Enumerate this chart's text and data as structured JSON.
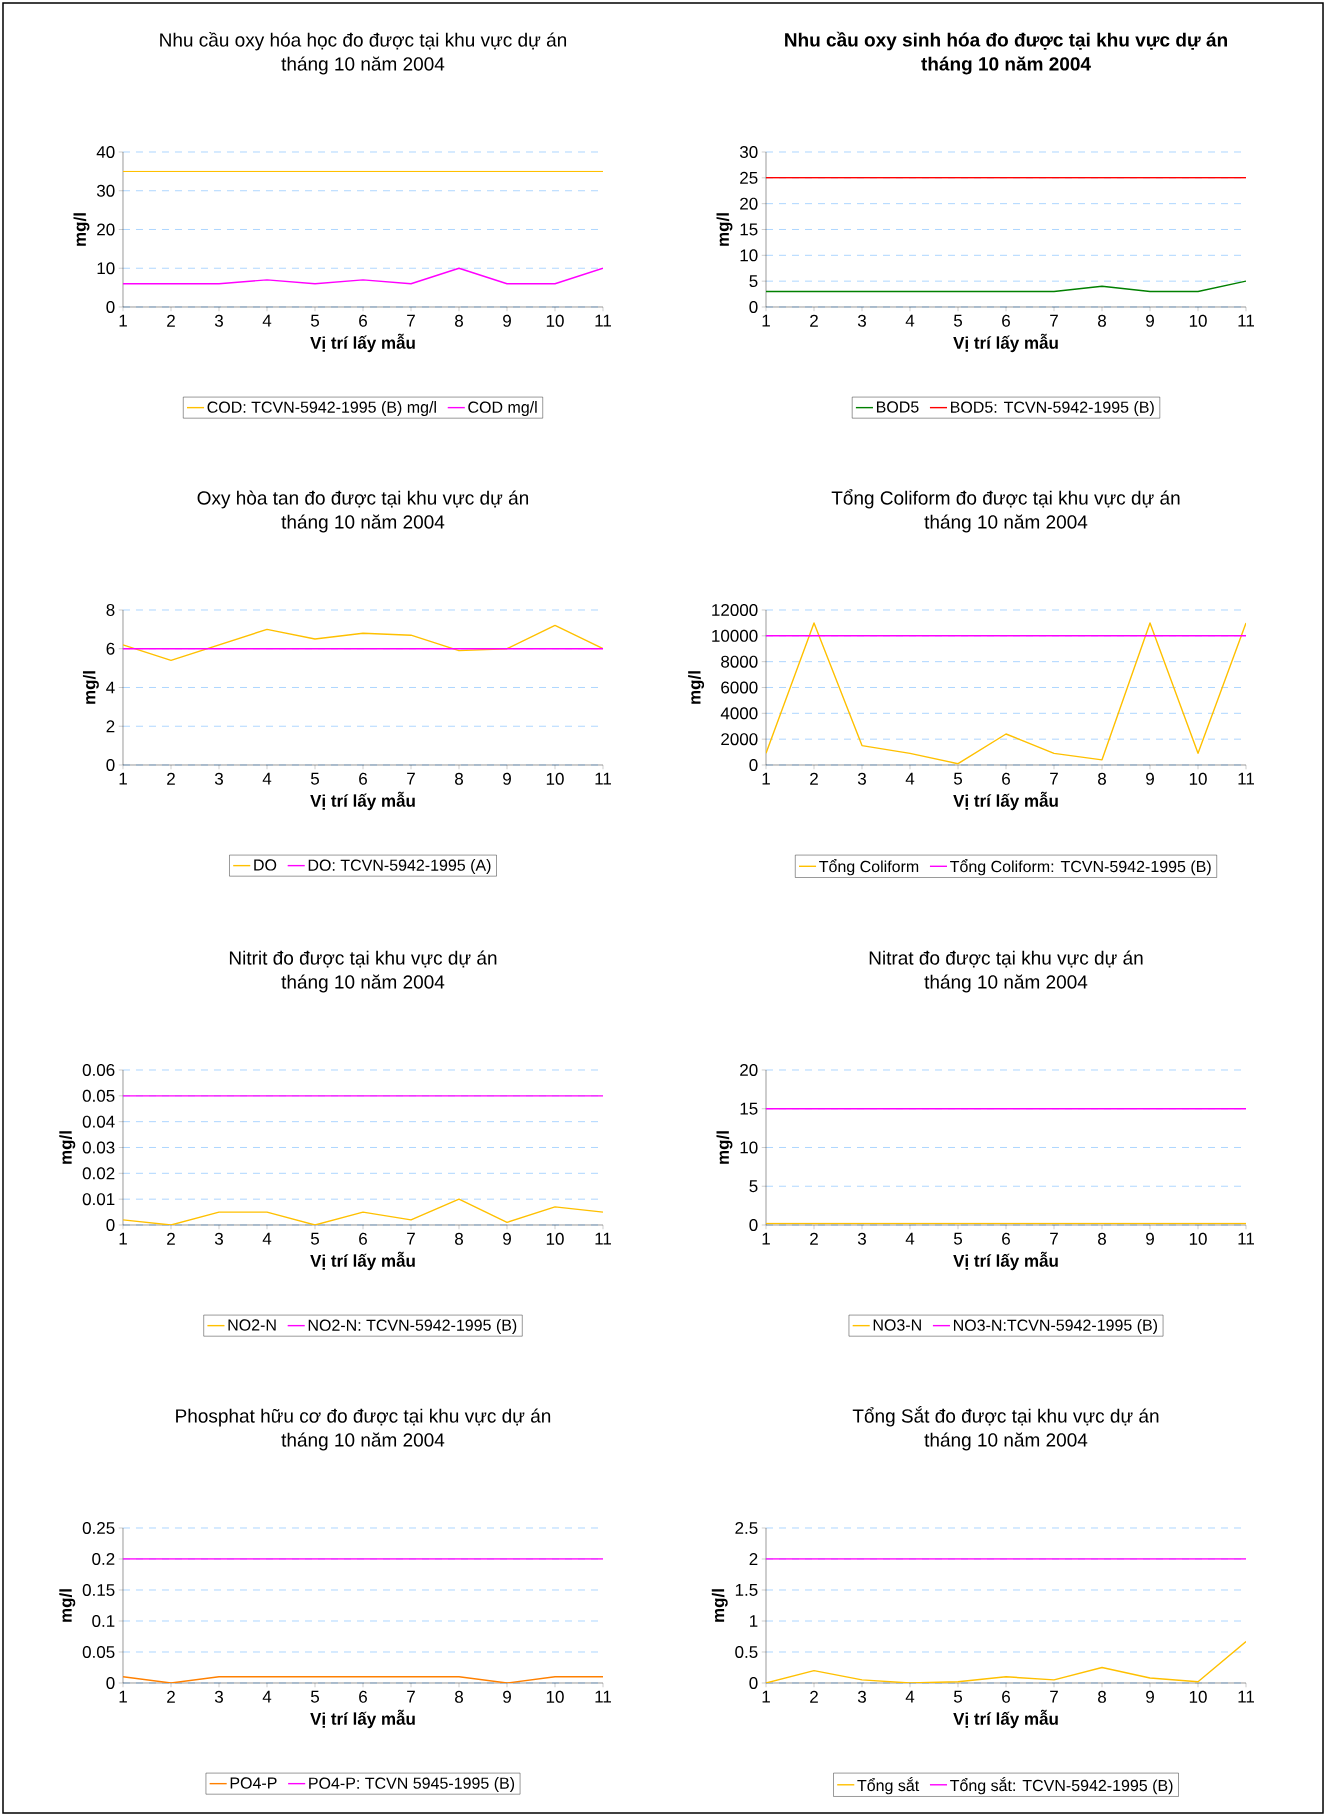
{
  "chart_data": [
    {
      "type": "line",
      "title": "Nhu cầu oxy hóa học đo được tại khu vực dự án",
      "subtitle": "tháng 10 năm 2004",
      "xlabel": "Vị trí lấy mẫu",
      "ylabel": "mg/l",
      "categories": [
        "1",
        "2",
        "3",
        "4",
        "5",
        "6",
        "7",
        "8",
        "9",
        "10",
        "11"
      ],
      "ylim": [
        0,
        40
      ],
      "yticks": [
        0,
        10,
        20,
        30,
        40
      ],
      "grid": "y",
      "legend": "bottom",
      "series": [
        {
          "name": "COD: TCVN-5942-1995 (B) mg/l",
          "color": "#ffc000",
          "values": [
            35,
            35,
            35,
            35,
            35,
            35,
            35,
            35,
            35,
            35,
            35
          ]
        },
        {
          "name": "COD  mg/l",
          "color": "#ff00ff",
          "values": [
            6,
            6,
            6,
            7,
            6,
            7,
            6,
            10,
            6,
            6,
            10
          ]
        }
      ]
    },
    {
      "type": "line",
      "title": "**Nhu cầu oxy sinh hóa đo được tại khu vực dự án**",
      "subtitle": "**tháng 10 năm 2004**",
      "xlabel": "Vị trí lấy mẫu",
      "ylabel": "mg/l",
      "categories": [
        "1",
        "2",
        "3",
        "4",
        "5",
        "6",
        "7",
        "8",
        "9",
        "10",
        "11"
      ],
      "ylim": [
        0,
        30
      ],
      "yticks": [
        0,
        5,
        10,
        15,
        20,
        25,
        30
      ],
      "grid": "y",
      "legend": "bottom",
      "series": [
        {
          "name": "BOD5",
          "color": "#008000",
          "values": [
            3,
            3,
            3,
            3,
            3,
            3,
            3,
            4,
            3,
            3,
            5
          ]
        },
        {
          "name": "BOD5: TCVN-5942-1995 (B)",
          "color": "#ff0000",
          "values": [
            25,
            25,
            25,
            25,
            25,
            25,
            25,
            25,
            25,
            25,
            25
          ]
        }
      ]
    },
    {
      "type": "line",
      "title": "Oxy hòa tan đo được tại khu vực dự án",
      "subtitle": "tháng 10 năm 2004",
      "xlabel": "Vị trí lấy mẫu",
      "ylabel": "mg/l",
      "categories": [
        "1",
        "2",
        "3",
        "4",
        "5",
        "6",
        "7",
        "8",
        "9",
        "10",
        "11"
      ],
      "ylim": [
        0,
        8
      ],
      "yticks": [
        0,
        2,
        4,
        6,
        8
      ],
      "grid": "y",
      "legend": "bottom",
      "series": [
        {
          "name": "DO",
          "color": "#ffc000",
          "values": [
            6.2,
            5.4,
            6.2,
            7,
            6.5,
            6.8,
            6.7,
            5.9,
            6,
            7.2,
            6
          ]
        },
        {
          "name": "DO: TCVN-5942-1995 (A)",
          "color": "#ff00ff",
          "values": [
            6,
            6,
            6,
            6,
            6,
            6,
            6,
            6,
            6,
            6,
            6
          ]
        }
      ]
    },
    {
      "type": "line",
      "title": "Tổng Coliform đo được tại khu vực dự án",
      "subtitle": "tháng 10 năm 2004",
      "xlabel": "Vị trí lấy mẫu",
      "ylabel": "mg/l",
      "categories": [
        "1",
        "2",
        "3",
        "4",
        "5",
        "6",
        "7",
        "8",
        "9",
        "10",
        "11"
      ],
      "ylim": [
        0,
        12000
      ],
      "yticks": [
        0,
        2000,
        4000,
        6000,
        8000,
        10000,
        12000
      ],
      "grid": "y",
      "legend": "bottom",
      "series": [
        {
          "name": "Tổng Coliform",
          "color": "#ffc000",
          "values": [
            900,
            11000,
            1500,
            900,
            100,
            2400,
            900,
            400,
            11000,
            900,
            11000
          ]
        },
        {
          "name": "Tổng Coliform: TCVN-5942-1995 (B)",
          "color": "#ff00ff",
          "values": [
            10000,
            10000,
            10000,
            10000,
            10000,
            10000,
            10000,
            10000,
            10000,
            10000,
            10000
          ]
        }
      ]
    },
    {
      "type": "line",
      "title": "Nitrit đo được tại khu vực dự án",
      "subtitle": "tháng 10 năm 2004",
      "xlabel": "Vị trí lấy mẫu",
      "ylabel": "mg/l",
      "categories": [
        "1",
        "2",
        "3",
        "4",
        "5",
        "6",
        "7",
        "8",
        "9",
        "10",
        "11"
      ],
      "ylim": [
        0,
        0.06
      ],
      "yticks": [
        0,
        0.01,
        0.02,
        0.03,
        0.04,
        0.05,
        0.06
      ],
      "grid": "y",
      "legend": "bottom",
      "series": [
        {
          "name": "NO2-N",
          "color": "#ffc000",
          "values": [
            0.002,
            0,
            0.005,
            0.005,
            0,
            0.005,
            0.002,
            0.01,
            0.001,
            0.007,
            0.005
          ]
        },
        {
          "name": "NO2-N: TCVN-5942-1995 (B)",
          "color": "#ff00ff",
          "values": [
            0.05,
            0.05,
            0.05,
            0.05,
            0.05,
            0.05,
            0.05,
            0.05,
            0.05,
            0.05,
            0.05
          ]
        }
      ]
    },
    {
      "type": "line",
      "title": "Nitrat đo được tại khu vực dự án",
      "subtitle": "tháng 10 năm 2004",
      "xlabel": "Vị trí lấy mẫu",
      "ylabel": "mg/l",
      "categories": [
        "1",
        "2",
        "3",
        "4",
        "5",
        "6",
        "7",
        "8",
        "9",
        "10",
        "11"
      ],
      "ylim": [
        0,
        20
      ],
      "yticks": [
        0,
        5,
        10,
        15,
        20
      ],
      "grid": "y",
      "legend": "bottom",
      "series": [
        {
          "name": "NO3-N",
          "color": "#ffc000",
          "values": [
            0.2,
            0.2,
            0.2,
            0.2,
            0.2,
            0.2,
            0.2,
            0.2,
            0.2,
            0.2,
            0.2
          ]
        },
        {
          "name": "NO3-N:TCVN-5942-1995 (B)",
          "color": "#ff00ff",
          "values": [
            15,
            15,
            15,
            15,
            15,
            15,
            15,
            15,
            15,
            15,
            15
          ]
        }
      ]
    },
    {
      "type": "line",
      "title": "Phosphat hữu cơ đo được tại khu vực dự án",
      "subtitle": "tháng 10 năm 2004",
      "xlabel": "Vị trí lấy mẫu",
      "ylabel": "mg/l",
      "categories": [
        "1",
        "2",
        "3",
        "4",
        "5",
        "6",
        "7",
        "8",
        "9",
        "10",
        "11"
      ],
      "ylim": [
        0,
        0.25
      ],
      "yticks": [
        0,
        0.05,
        0.1,
        0.15,
        0.2,
        0.25
      ],
      "grid": "y",
      "legend": "bottom",
      "series": [
        {
          "name": "PO4-P",
          "color": "#ff8000",
          "values": [
            0.01,
            0,
            0.01,
            0.01,
            0.01,
            0.01,
            0.01,
            0.01,
            0,
            0.01,
            0.01
          ]
        },
        {
          "name": "PO4-P: TCVN 5945-1995 (B)",
          "color": "#ff00ff",
          "values": [
            0.2,
            0.2,
            0.2,
            0.2,
            0.2,
            0.2,
            0.2,
            0.2,
            0.2,
            0.2,
            0.2
          ]
        }
      ]
    },
    {
      "type": "line",
      "title": "Tổng Sắt đo được tại khu vực dự án",
      "subtitle": "tháng 10 năm 2004",
      "xlabel": "Vị trí lấy mẫu",
      "ylabel": "mg/l",
      "categories": [
        "1",
        "2",
        "3",
        "4",
        "5",
        "6",
        "7",
        "8",
        "9",
        "10",
        "11"
      ],
      "ylim": [
        0,
        2.5
      ],
      "yticks": [
        0,
        0.5,
        1,
        1.5,
        2,
        2.5
      ],
      "grid": "y",
      "legend": "bottom",
      "series": [
        {
          "name": "Tổng sắt",
          "color": "#ffc000",
          "values": [
            0,
            0.2,
            0.05,
            0,
            0.02,
            0.1,
            0.05,
            0.25,
            0.08,
            0.02,
            0.67
          ]
        },
        {
          "name": "Tổng sắt: TCVN-5942-1995 (B)",
          "color": "#ff00ff",
          "values": [
            2,
            2,
            2,
            2,
            2,
            2,
            2,
            2,
            2,
            2,
            2
          ]
        }
      ]
    }
  ]
}
